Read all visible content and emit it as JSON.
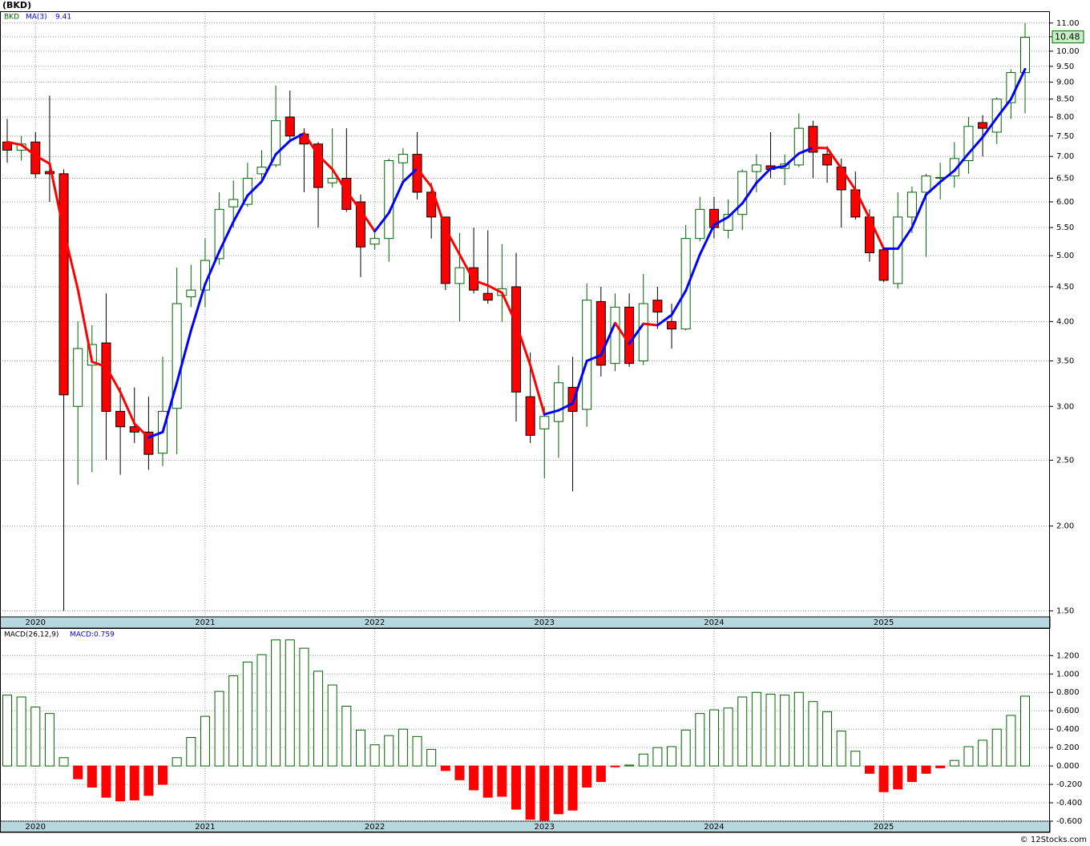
{
  "chart_data": [
    {
      "type": "candlestick",
      "title": "(BKD)",
      "categories": [
        null,
        null,
        "2020",
        null,
        null,
        null,
        null,
        null,
        null,
        null,
        null,
        null,
        null,
        null,
        "2021",
        null,
        null,
        null,
        null,
        null,
        null,
        null,
        null,
        null,
        null,
        null,
        "2022",
        null,
        null,
        null,
        null,
        null,
        null,
        null,
        null,
        null,
        null,
        null,
        "2023",
        null,
        null,
        null,
        null,
        null,
        null,
        null,
        null,
        null,
        null,
        null,
        "2024",
        null,
        null,
        null,
        null,
        null,
        null,
        null,
        null,
        null,
        null,
        null,
        "2025",
        null,
        null,
        null,
        null,
        null,
        null,
        null,
        null,
        null,
        null
      ],
      "log_scale": true,
      "grid": true,
      "ylim": [
        1.47,
        11.45
      ],
      "yticks": [
        {
          "value": 11,
          "label": "11.00"
        },
        {
          "value": 10.5,
          "label": "10.50"
        },
        {
          "value": 10,
          "label": "10.00"
        },
        {
          "value": 9.5,
          "label": "9.50"
        },
        {
          "value": 9,
          "label": "9.00"
        },
        {
          "value": 8.5,
          "label": "8.50"
        },
        {
          "value": 8,
          "label": "8.00"
        },
        {
          "value": 7.5,
          "label": "7.50"
        },
        {
          "value": 7,
          "label": "7.00"
        },
        {
          "value": 6.5,
          "label": "6.50"
        },
        {
          "value": 6,
          "label": "6.00"
        },
        {
          "value": 5.5,
          "label": "5.50"
        },
        {
          "value": 5,
          "label": "5.00"
        },
        {
          "value": 4.5,
          "label": "4.50"
        },
        {
          "value": 4,
          "label": "4.00"
        },
        {
          "value": 3.5,
          "label": "3.50"
        },
        {
          "value": 3,
          "label": "3.00"
        },
        {
          "value": 2.5,
          "label": "2.50"
        },
        {
          "value": 2,
          "label": "2.00"
        },
        {
          "value": 1.5,
          "label": "1.50"
        }
      ],
      "series": [
        {
          "name": "BKD",
          "up_color": "#006400",
          "down_color": "#ff0000",
          "open": [
            7.35,
            7.15,
            7.35,
            6.65,
            6.6,
            3.0,
            3.45,
            3.72,
            2.95,
            2.8,
            2.75,
            2.56,
            2.98,
            4.35,
            4.45,
            4.95,
            5.9,
            5.95,
            6.6,
            6.8,
            8.0,
            7.55,
            7.3,
            6.4,
            6.5,
            6.0,
            5.2,
            5.3,
            6.85,
            7.05,
            6.2,
            5.7,
            4.55,
            4.8,
            4.4,
            4.37,
            4.5,
            3.1,
            2.78,
            2.85,
            3.2,
            2.97,
            4.28,
            3.47,
            4.2,
            3.5,
            4.3,
            4.0,
            3.9,
            5.3,
            5.85,
            5.45,
            5.75,
            6.65,
            6.78,
            6.72,
            6.8,
            7.75,
            7.05,
            6.75,
            6.25,
            5.7,
            5.1,
            4.55,
            5.7,
            6.2,
            6.5,
            6.55,
            6.9,
            7.85,
            7.6,
            8.4,
            9.3
          ],
          "high": [
            7.95,
            7.5,
            7.6,
            8.6,
            6.7,
            4.0,
            3.95,
            4.4,
            3.2,
            3.2,
            3.1,
            3.55,
            4.8,
            4.85,
            5.3,
            6.2,
            6.45,
            6.85,
            7.15,
            8.9,
            8.75,
            7.7,
            7.35,
            7.7,
            7.7,
            6.15,
            5.4,
            6.95,
            7.2,
            7.6,
            6.4,
            5.7,
            5.4,
            5.5,
            5.45,
            5.2,
            5.05,
            3.6,
            3.0,
            3.45,
            3.55,
            4.55,
            4.5,
            4.4,
            4.4,
            4.7,
            4.5,
            4.25,
            5.55,
            6.1,
            6.1,
            6.05,
            6.7,
            7.05,
            7.6,
            7.05,
            8.1,
            7.9,
            7.25,
            6.95,
            6.65,
            5.85,
            5.15,
            6.2,
            6.32,
            6.6,
            6.85,
            7.35,
            8.0,
            8.05,
            8.55,
            9.4,
            11.0
          ],
          "low": [
            6.85,
            6.9,
            6.5,
            6.0,
            1.5,
            2.3,
            2.4,
            2.5,
            2.38,
            2.65,
            2.42,
            2.45,
            2.55,
            4.2,
            4.2,
            4.85,
            5.5,
            5.9,
            6.4,
            6.75,
            7.35,
            6.2,
            5.5,
            6.3,
            5.8,
            4.65,
            5.1,
            4.9,
            6.4,
            6.05,
            5.3,
            4.45,
            4.0,
            4.4,
            4.25,
            4.0,
            2.85,
            2.65,
            2.35,
            2.52,
            2.25,
            2.8,
            3.32,
            3.38,
            3.43,
            3.45,
            3.9,
            3.65,
            3.88,
            5.25,
            5.3,
            5.3,
            5.45,
            6.2,
            6.5,
            6.35,
            6.75,
            6.5,
            6.4,
            5.5,
            5.65,
            4.9,
            4.57,
            4.47,
            5.4,
            4.98,
            6.05,
            6.3,
            6.6,
            7.0,
            7.3,
            7.95,
            8.1
          ],
          "close": [
            7.15,
            7.3,
            6.6,
            6.6,
            3.12,
            3.65,
            3.7,
            2.95,
            2.8,
            2.75,
            2.55,
            2.95,
            4.25,
            4.45,
            4.92,
            5.85,
            6.05,
            6.5,
            6.75,
            7.9,
            7.5,
            7.3,
            6.3,
            6.5,
            5.85,
            5.15,
            5.3,
            6.9,
            7.05,
            6.2,
            5.7,
            4.55,
            4.8,
            4.45,
            4.3,
            4.47,
            3.15,
            2.72,
            2.9,
            3.25,
            2.95,
            4.3,
            3.45,
            4.2,
            3.47,
            4.25,
            4.13,
            3.9,
            5.3,
            5.85,
            5.5,
            5.75,
            6.65,
            6.8,
            6.7,
            6.82,
            7.7,
            7.1,
            6.8,
            6.25,
            5.7,
            5.05,
            4.6,
            5.7,
            6.2,
            6.55,
            6.52,
            6.95,
            7.75,
            7.7,
            8.5,
            9.3,
            10.48
          ]
        },
        {
          "name": "MA(3)",
          "color": "#0000ff",
          "down_color": "#ff0000",
          "values": [
            7.35,
            7.28,
            7.02,
            6.83,
            5.44,
            4.46,
            3.49,
            3.43,
            3.15,
            2.83,
            2.7,
            2.75,
            3.25,
            3.88,
            4.54,
            5.07,
            5.61,
            6.13,
            6.43,
            7.05,
            7.38,
            7.57,
            7.03,
            6.7,
            6.22,
            5.83,
            5.43,
            5.78,
            6.42,
            6.72,
            6.32,
            5.48,
            5.02,
            4.6,
            4.52,
            4.41,
            3.97,
            3.45,
            2.92,
            2.96,
            3.03,
            3.5,
            3.57,
            3.98,
            3.71,
            3.97,
            3.95,
            4.09,
            4.44,
            5.02,
            5.55,
            5.7,
            5.97,
            6.4,
            6.72,
            6.77,
            7.07,
            7.21,
            7.2,
            6.72,
            6.25,
            5.67,
            5.12,
            5.12,
            5.5,
            6.15,
            6.42,
            6.67,
            7.07,
            7.47,
            7.98,
            8.5,
            9.41
          ]
        }
      ]
    },
    {
      "type": "bar",
      "categories": [
        null,
        null,
        "2020",
        null,
        null,
        null,
        null,
        null,
        null,
        null,
        null,
        null,
        null,
        null,
        "2021",
        null,
        null,
        null,
        null,
        null,
        null,
        null,
        null,
        null,
        null,
        null,
        "2022",
        null,
        null,
        null,
        null,
        null,
        null,
        null,
        null,
        null,
        null,
        null,
        "2023",
        null,
        null,
        null,
        null,
        null,
        null,
        null,
        null,
        null,
        null,
        null,
        "2024",
        null,
        null,
        null,
        null,
        null,
        null,
        null,
        null,
        null,
        null,
        null,
        "2025",
        null,
        null,
        null,
        null,
        null,
        null,
        null,
        null,
        null,
        null
      ],
      "grid": true,
      "ylim": [
        -0.6,
        1.49
      ],
      "yticks": [
        {
          "value": 1.2,
          "label": "1.200"
        },
        {
          "value": 1,
          "label": "1.000"
        },
        {
          "value": 0.8,
          "label": "0.800"
        },
        {
          "value": 0.6,
          "label": "0.600"
        },
        {
          "value": 0.4,
          "label": "0.400"
        },
        {
          "value": 0.2,
          "label": "0.200"
        },
        {
          "value": 0,
          "label": "0.000"
        },
        {
          "value": -0.2,
          "label": "-0.200"
        },
        {
          "value": -0.4,
          "label": "-0.400"
        },
        {
          "value": -0.6,
          "label": "-0.600"
        }
      ],
      "series": [
        {
          "name": "MACD(26,12,9)",
          "legend_value": "MACD:0.759",
          "up_color": "#006400",
          "down_color": "#ff0000",
          "values": [
            0.77,
            0.75,
            0.64,
            0.57,
            0.09,
            -0.14,
            -0.23,
            -0.34,
            -0.38,
            -0.37,
            -0.32,
            -0.2,
            0.09,
            0.31,
            0.54,
            0.81,
            0.98,
            1.13,
            1.21,
            1.37,
            1.37,
            1.28,
            1.03,
            0.88,
            0.65,
            0.39,
            0.23,
            0.33,
            0.4,
            0.32,
            0.18,
            -0.05,
            -0.15,
            -0.26,
            -0.34,
            -0.33,
            -0.47,
            -0.58,
            -0.59,
            -0.52,
            -0.48,
            -0.23,
            -0.17,
            -0.01,
            0.01,
            0.13,
            0.2,
            0.21,
            0.39,
            0.57,
            0.61,
            0.63,
            0.75,
            0.8,
            0.78,
            0.77,
            0.8,
            0.7,
            0.59,
            0.38,
            0.16,
            -0.08,
            -0.28,
            -0.25,
            -0.17,
            -0.08,
            -0.02,
            0.06,
            0.21,
            0.28,
            0.4,
            0.55,
            0.759
          ]
        }
      ]
    }
  ],
  "footer": "© 12Stocks.com"
}
